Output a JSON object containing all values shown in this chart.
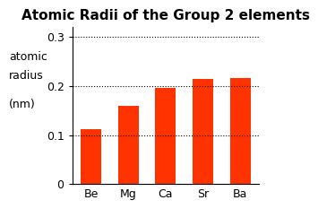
{
  "title": "Atomic Radii of the Group 2 elements",
  "ylabel_line1": "atomic",
  "ylabel_line2": "radius",
  "ylabel_line3": "(nm)",
  "categories": [
    "Be",
    "Mg",
    "Ca",
    "Sr",
    "Ba"
  ],
  "values": [
    0.112,
    0.16,
    0.197,
    0.215,
    0.217
  ],
  "bar_color": "#FF3300",
  "ylim": [
    0,
    0.32
  ],
  "yticks": [
    0,
    0.1,
    0.2,
    0.3
  ],
  "background_color": "#ffffff",
  "title_fontsize": 11,
  "axis_fontsize": 9,
  "tick_fontsize": 9
}
